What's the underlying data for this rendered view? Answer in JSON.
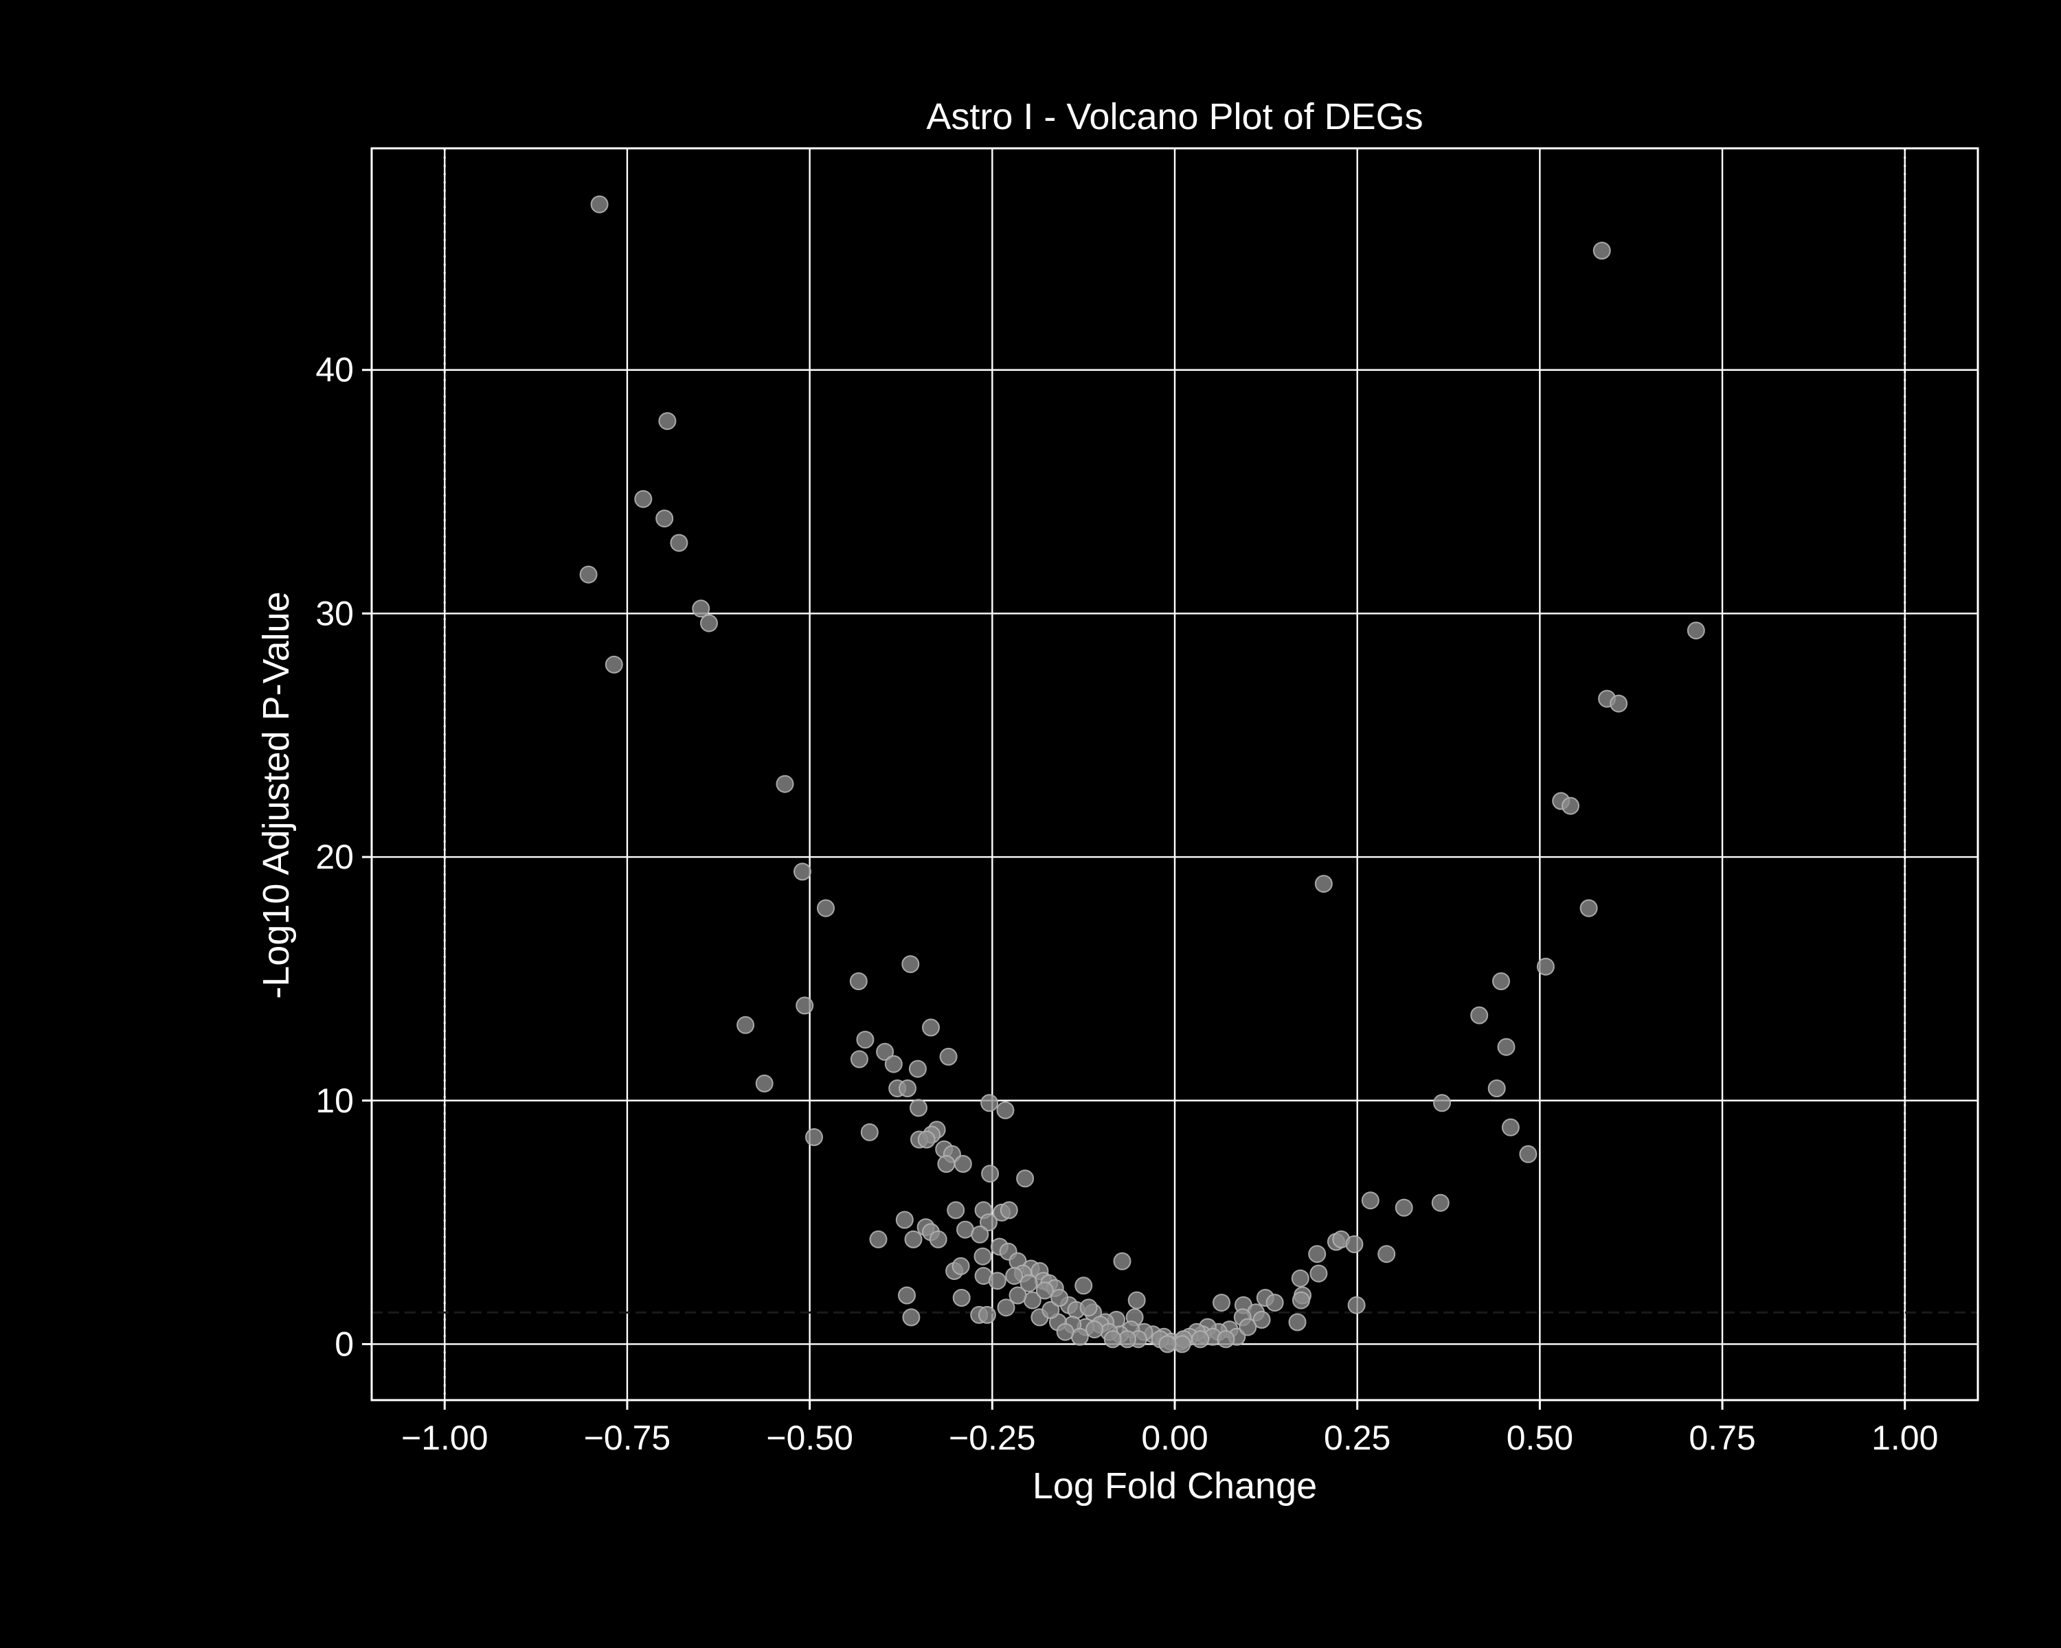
{
  "chart_data": {
    "type": "scatter",
    "title": "Astro I - Volcano Plot of DEGs",
    "xlabel": "Log Fold Change",
    "ylabel": "-Log10 Adjusted P-Value",
    "xlim": [
      -1.1,
      1.1
    ],
    "ylim": [
      -2.3,
      49.1
    ],
    "x_ticks": [
      -1.0,
      -0.75,
      -0.5,
      -0.25,
      0.0,
      0.25,
      0.5,
      0.75,
      1.0
    ],
    "x_tick_labels": [
      "−1.00",
      "−0.75",
      "−0.50",
      "−0.25",
      "0.00",
      "0.25",
      "0.50",
      "0.75",
      "1.00"
    ],
    "y_ticks": [
      0,
      10,
      20,
      30,
      40
    ],
    "y_tick_labels": [
      "0",
      "10",
      "20",
      "30",
      "40"
    ],
    "grid": true,
    "vlines": [
      -1.0,
      1.0
    ],
    "hline": 1.3,
    "colors": {
      "background": "#000000",
      "foreground": "#ffffff",
      "point": "#8c8c8c",
      "point_edge": "#b4b4b4"
    },
    "points": [
      [
        -0.788,
        46.8
      ],
      [
        0.585,
        44.9
      ],
      [
        -0.695,
        37.9
      ],
      [
        -0.728,
        34.7
      ],
      [
        -0.699,
        33.9
      ],
      [
        -0.679,
        32.9
      ],
      [
        -0.803,
        31.6
      ],
      [
        -0.649,
        30.2
      ],
      [
        -0.638,
        29.6
      ],
      [
        -0.768,
        27.9
      ],
      [
        0.714,
        29.3
      ],
      [
        0.592,
        26.5
      ],
      [
        0.608,
        26.3
      ],
      [
        -0.534,
        23.0
      ],
      [
        0.529,
        22.3
      ],
      [
        0.542,
        22.1
      ],
      [
        -0.51,
        19.4
      ],
      [
        0.204,
        18.9
      ],
      [
        -0.478,
        17.9
      ],
      [
        0.567,
        17.9
      ],
      [
        -0.362,
        15.6
      ],
      [
        0.508,
        15.5
      ],
      [
        -0.433,
        14.9
      ],
      [
        0.447,
        14.9
      ],
      [
        -0.507,
        13.9
      ],
      [
        0.417,
        13.5
      ],
      [
        -0.588,
        13.1
      ],
      [
        -0.334,
        13.0
      ],
      [
        -0.424,
        12.5
      ],
      [
        0.454,
        12.2
      ],
      [
        -0.397,
        12.0
      ],
      [
        -0.432,
        11.7
      ],
      [
        -0.31,
        11.8
      ],
      [
        -0.385,
        11.5
      ],
      [
        -0.352,
        11.3
      ],
      [
        -0.562,
        10.7
      ],
      [
        -0.38,
        10.5
      ],
      [
        -0.366,
        10.5
      ],
      [
        0.441,
        10.5
      ],
      [
        -0.254,
        9.9
      ],
      [
        0.366,
        9.9
      ],
      [
        -0.351,
        9.7
      ],
      [
        -0.232,
        9.6
      ],
      [
        0.46,
        8.9
      ],
      [
        -0.326,
        8.8
      ],
      [
        -0.333,
        8.6
      ],
      [
        -0.418,
        8.7
      ],
      [
        -0.494,
        8.5
      ],
      [
        -0.35,
        8.4
      ],
      [
        -0.34,
        8.4
      ],
      [
        -0.316,
        8.0
      ],
      [
        -0.305,
        7.8
      ],
      [
        0.484,
        7.8
      ],
      [
        -0.29,
        7.4
      ],
      [
        -0.313,
        7.4
      ],
      [
        -0.205,
        6.8
      ],
      [
        -0.253,
        7.0
      ],
      [
        0.268,
        5.9
      ],
      [
        0.314,
        5.6
      ],
      [
        0.364,
        5.8
      ],
      [
        -0.3,
        5.5
      ],
      [
        -0.237,
        5.4
      ],
      [
        -0.227,
        5.5
      ],
      [
        -0.262,
        5.5
      ],
      [
        -0.37,
        5.1
      ],
      [
        -0.255,
        5.0
      ],
      [
        -0.341,
        4.8
      ],
      [
        -0.334,
        4.6
      ],
      [
        -0.287,
        4.7
      ],
      [
        -0.324,
        4.3
      ],
      [
        -0.358,
        4.3
      ],
      [
        -0.406,
        4.3
      ],
      [
        -0.267,
        4.5
      ],
      [
        0.221,
        4.2
      ],
      [
        0.228,
        4.3
      ],
      [
        0.246,
        4.1
      ],
      [
        -0.24,
        4.0
      ],
      [
        0.195,
        3.7
      ],
      [
        -0.228,
        3.8
      ],
      [
        -0.263,
        3.6
      ],
      [
        -0.215,
        3.4
      ],
      [
        -0.072,
        3.4
      ],
      [
        0.29,
        3.7
      ],
      [
        -0.197,
        3.1
      ],
      [
        -0.185,
        3.0
      ],
      [
        -0.208,
        2.9
      ],
      [
        -0.18,
        2.6
      ],
      [
        0.197,
        2.9
      ],
      [
        0.172,
        2.7
      ],
      [
        -0.302,
        3.0
      ],
      [
        -0.293,
        3.2
      ],
      [
        -0.262,
        2.8
      ],
      [
        -0.172,
        2.5
      ],
      [
        -0.164,
        2.3
      ],
      [
        -0.125,
        2.4
      ],
      [
        -0.367,
        2.0
      ],
      [
        -0.292,
        1.9
      ],
      [
        0.175,
        2.0
      ],
      [
        0.173,
        1.8
      ],
      [
        0.124,
        1.9
      ],
      [
        0.137,
        1.7
      ],
      [
        0.064,
        1.7
      ],
      [
        -0.052,
        1.8
      ],
      [
        0.249,
        1.6
      ],
      [
        0.094,
        1.6
      ],
      [
        -0.231,
        1.5
      ],
      [
        -0.145,
        1.6
      ],
      [
        -0.135,
        1.4
      ],
      [
        -0.112,
        1.3
      ],
      [
        0.111,
        1.3
      ],
      [
        -0.268,
        1.2
      ],
      [
        -0.257,
        1.2
      ],
      [
        -0.361,
        1.1
      ],
      [
        -0.055,
        1.1
      ],
      [
        -0.185,
        1.1
      ],
      [
        0.168,
        0.9
      ],
      [
        0.119,
        1.0
      ],
      [
        0.093,
        1.1
      ],
      [
        -0.08,
        1.0
      ],
      [
        -0.095,
        0.9
      ],
      [
        -0.102,
        0.8
      ],
      [
        -0.122,
        0.7
      ],
      [
        -0.14,
        0.8
      ],
      [
        -0.16,
        0.9
      ],
      [
        0.075,
        0.6
      ],
      [
        0.06,
        0.5
      ],
      [
        0.045,
        0.7
      ],
      [
        0.038,
        0.4
      ],
      [
        0.03,
        0.5
      ],
      [
        0.02,
        0.3
      ],
      [
        -0.015,
        0.3
      ],
      [
        -0.03,
        0.4
      ],
      [
        -0.042,
        0.5
      ],
      [
        -0.06,
        0.6
      ],
      [
        -0.075,
        0.4
      ],
      [
        -0.09,
        0.5
      ],
      [
        -0.11,
        0.6
      ],
      [
        -0.005,
        0.1
      ],
      [
        0.008,
        0.1
      ],
      [
        -0.02,
        0.2
      ],
      [
        0.012,
        0.2
      ],
      [
        0.052,
        0.3
      ],
      [
        0.085,
        0.3
      ],
      [
        -0.05,
        0.2
      ],
      [
        -0.065,
        0.2
      ],
      [
        -0.085,
        0.2
      ],
      [
        -0.13,
        0.3
      ],
      [
        -0.15,
        0.5
      ],
      [
        -0.17,
        1.4
      ],
      [
        -0.195,
        1.8
      ],
      [
        -0.215,
        2.0
      ],
      [
        -0.243,
        2.6
      ],
      [
        -0.22,
        2.8
      ],
      [
        -0.2,
        2.5
      ],
      [
        -0.178,
        2.2
      ],
      [
        -0.158,
        1.9
      ],
      [
        -0.118,
        1.5
      ],
      [
        0.1,
        0.7
      ],
      [
        0.035,
        0.2
      ],
      [
        0.07,
        0.2
      ],
      [
        0.01,
        0.0
      ],
      [
        -0.01,
        0.0
      ]
    ]
  }
}
